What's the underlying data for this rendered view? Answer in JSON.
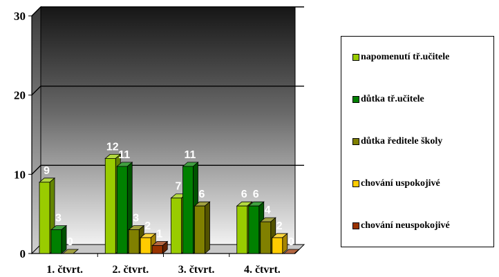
{
  "chart_data": {
    "type": "bar",
    "title": "",
    "xlabel": "",
    "ylabel": "",
    "categories": [
      "1. čtvrt.",
      "2. čtvrt.",
      "3. čtvrt.",
      "4. čtvrt."
    ],
    "ylim": [
      0,
      30
    ],
    "yticks": [
      "0",
      "10",
      "20",
      "30"
    ],
    "grid": true,
    "legend_position": "right",
    "series": [
      {
        "name": "napomenutí tř.učitele",
        "color": "#99cc00",
        "values": [
          9,
          12,
          7,
          6
        ]
      },
      {
        "name": "důtka tř.učitele",
        "color": "#008000",
        "values": [
          3,
          11,
          11,
          6
        ]
      },
      {
        "name": "důtka ředitele školy",
        "color": "#808000",
        "values": [
          0,
          3,
          6,
          4
        ]
      },
      {
        "name": "chování uspokojivé",
        "color": "#ffcc00",
        "values": [
          null,
          2,
          null,
          2
        ]
      },
      {
        "name": "chování neuspokojivé",
        "color": "#993300",
        "values": [
          null,
          1,
          null,
          0
        ]
      }
    ]
  }
}
